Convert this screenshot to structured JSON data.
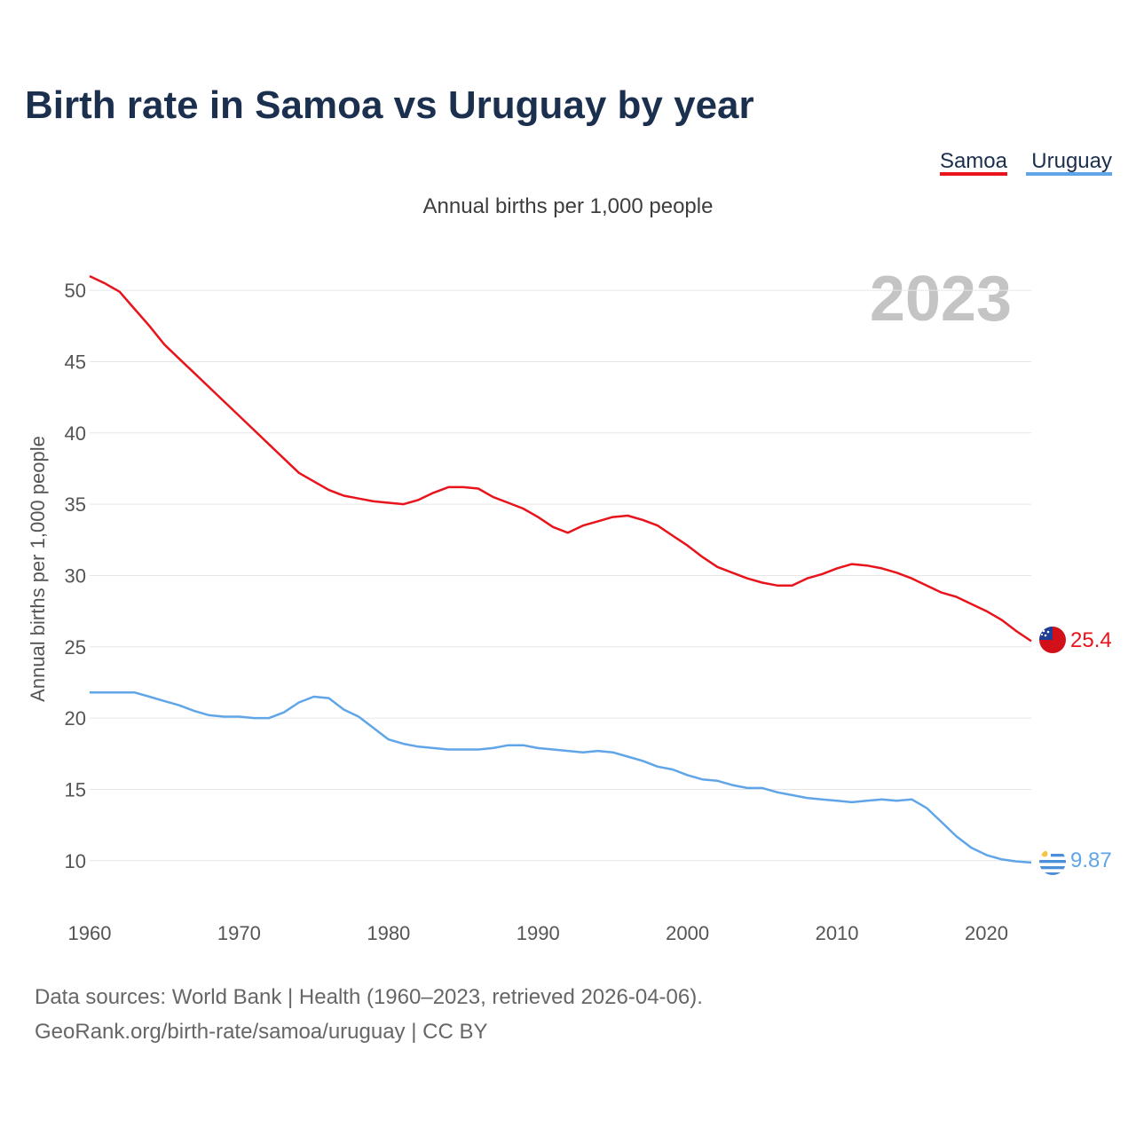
{
  "page": {
    "title": "Birth rate in Samoa vs Uruguay by year",
    "year_label": "2023",
    "source_line1": "Data sources: World Bank | Health (1960–2023, retrieved 2026-04-06).",
    "source_line2": "GeoRank.org/birth-rate/samoa/uruguay | CC BY"
  },
  "legend": [
    {
      "name": "Samoa",
      "color": "#e8131b"
    },
    {
      "name": "Uruguay",
      "color": "#5fa5e8"
    }
  ],
  "chart_data": {
    "type": "line",
    "title": "Birth rate in Samoa vs Uruguay by year",
    "subtitle": "Annual births per 1,000 people",
    "xlabel": "",
    "ylabel": "Annual births per 1,000 people",
    "xlim": [
      1960,
      2023
    ],
    "ylim": [
      7,
      52
    ],
    "x_ticks": [
      1960,
      1970,
      1980,
      1990,
      2000,
      2010,
      2020
    ],
    "y_ticks": [
      10,
      15,
      20,
      25,
      30,
      35,
      40,
      45,
      50
    ],
    "grid": true,
    "legend_position": "top-right",
    "x": [
      1960,
      1961,
      1962,
      1963,
      1964,
      1965,
      1966,
      1967,
      1968,
      1969,
      1970,
      1971,
      1972,
      1973,
      1974,
      1975,
      1976,
      1977,
      1978,
      1979,
      1980,
      1981,
      1982,
      1983,
      1984,
      1985,
      1986,
      1987,
      1988,
      1989,
      1990,
      1991,
      1992,
      1993,
      1994,
      1995,
      1996,
      1997,
      1998,
      1999,
      2000,
      2001,
      2002,
      2003,
      2004,
      2005,
      2006,
      2007,
      2008,
      2009,
      2010,
      2011,
      2012,
      2013,
      2014,
      2015,
      2016,
      2017,
      2018,
      2019,
      2020,
      2021,
      2022,
      2023
    ],
    "series": [
      {
        "name": "Samoa",
        "color": "#e8131b",
        "end_label": "25.4",
        "values": [
          51.0,
          50.5,
          49.9,
          48.7,
          47.5,
          46.2,
          45.2,
          44.2,
          43.2,
          42.2,
          41.2,
          40.2,
          39.2,
          38.2,
          37.2,
          36.6,
          36.0,
          35.6,
          35.4,
          35.2,
          35.1,
          35.0,
          35.3,
          35.8,
          36.2,
          36.2,
          36.1,
          35.5,
          35.1,
          34.7,
          34.1,
          33.4,
          33.0,
          33.5,
          33.8,
          34.1,
          34.2,
          33.9,
          33.5,
          32.8,
          32.1,
          31.3,
          30.6,
          30.2,
          29.8,
          29.5,
          29.3,
          29.3,
          29.8,
          30.1,
          30.5,
          30.8,
          30.7,
          30.5,
          30.2,
          29.8,
          29.3,
          28.8,
          28.5,
          28.0,
          27.5,
          26.9,
          26.1,
          25.4
        ]
      },
      {
        "name": "Uruguay",
        "color": "#5fa5e8",
        "end_label": "9.87",
        "values": [
          21.8,
          21.8,
          21.8,
          21.8,
          21.5,
          21.2,
          20.9,
          20.5,
          20.2,
          20.1,
          20.1,
          20.0,
          20.0,
          20.4,
          21.1,
          21.5,
          21.4,
          20.6,
          20.1,
          19.3,
          18.5,
          18.2,
          18.0,
          17.9,
          17.8,
          17.8,
          17.8,
          17.9,
          18.1,
          18.1,
          17.9,
          17.8,
          17.7,
          17.6,
          17.7,
          17.6,
          17.3,
          17.0,
          16.6,
          16.4,
          16.0,
          15.7,
          15.6,
          15.3,
          15.1,
          15.1,
          14.8,
          14.6,
          14.4,
          14.3,
          14.2,
          14.1,
          14.2,
          14.3,
          14.2,
          14.3,
          13.7,
          12.7,
          11.7,
          10.9,
          10.4,
          10.1,
          9.95,
          9.87
        ]
      }
    ]
  }
}
